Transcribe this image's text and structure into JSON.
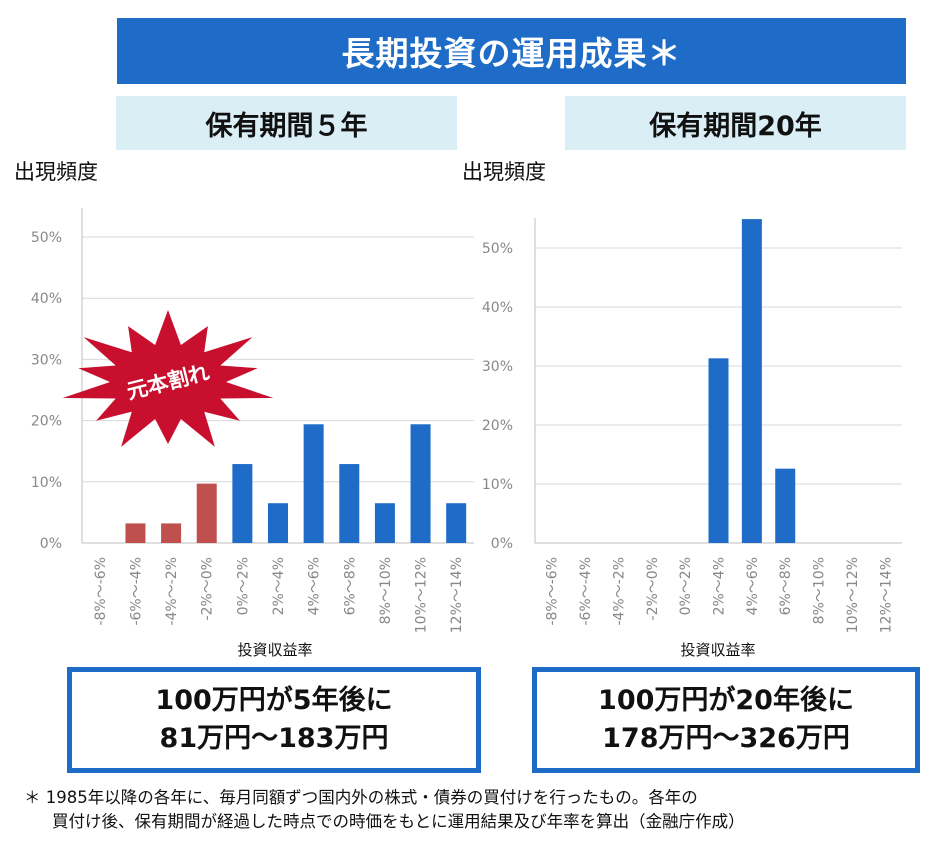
{
  "title": "長期投資の運用成果＊",
  "panels": [
    {
      "period": "保有期間５年",
      "ylabel": "出現頻度",
      "summary_line1": "100万円が5年後に",
      "summary_line2": "81万円～183万円"
    },
    {
      "period": "保有期間20年",
      "ylabel": "出現頻度",
      "summary_line1": "100万円が20年後に",
      "summary_line2": "178万円～326万円"
    }
  ],
  "callout": "元本割れ",
  "footnote": {
    "line1": "＊ 1985年以降の各年に、毎月同額ずつ国内外の株式・債券の買付けを行ったもの。各年の",
    "line2": "買付け後、保有期間が経過した時点での時価をもとに運用結果及び年率を算出（金融庁作成）"
  },
  "colors": {
    "banner": "#1e6cc8",
    "loss": "#c0504d",
    "gain": "#1e6cc8",
    "period_bg": "#d9eef5",
    "burst": "#c8102e"
  },
  "chart_data": [
    {
      "type": "bar",
      "title": "保有期間５年",
      "xlabel": "投資収益率",
      "ylabel": "出現頻度",
      "categories": [
        "-8%～-6%",
        "-6%～-4%",
        "-4%～-2%",
        "-2%～0%",
        "0%～2%",
        "2%～4%",
        "4%～6%",
        "6%～8%",
        "8%～10%",
        "10%～12%",
        "12%～14%"
      ],
      "values": [
        0,
        3.2,
        3.2,
        9.7,
        12.9,
        6.5,
        19.4,
        12.9,
        6.5,
        19.4,
        6.5
      ],
      "yticks": [
        "0%",
        "10%",
        "20%",
        "30%",
        "40%",
        "50%"
      ],
      "ylim": [
        0,
        50
      ],
      "loss_categories": 4,
      "grid": true
    },
    {
      "type": "bar",
      "title": "保有期間20年",
      "xlabel": "投資収益率",
      "ylabel": "出現頻度",
      "categories": [
        "-8%～-6%",
        "-6%～-4%",
        "-4%～-2%",
        "-2%～0%",
        "0%～2%",
        "2%～4%",
        "4%～6%",
        "6%～8%",
        "8%～10%",
        "10%～12%",
        "12%～14%"
      ],
      "values": [
        0,
        0,
        0,
        0,
        0,
        31.3,
        54.9,
        12.6,
        0,
        0,
        0
      ],
      "yticks": [
        "0%",
        "10%",
        "20%",
        "30%",
        "40%",
        "50%"
      ],
      "ylim": [
        0,
        50
      ],
      "loss_categories": 4,
      "grid": true
    }
  ]
}
